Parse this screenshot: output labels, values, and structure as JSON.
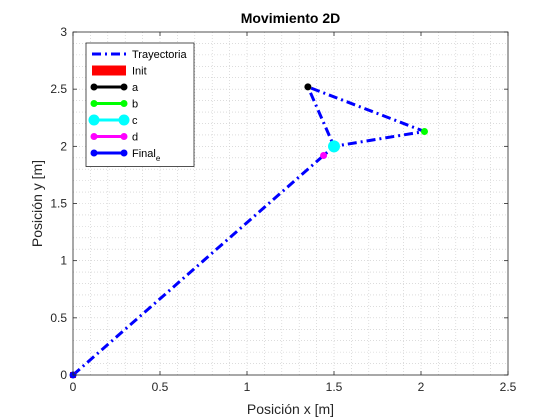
{
  "chart_data": {
    "type": "line",
    "title": "Movimiento 2D",
    "xlabel": "Posición x [m]",
    "ylabel": "Posición y [m]",
    "xlim": [
      0,
      2.5
    ],
    "ylim": [
      0,
      3
    ],
    "xticks": [
      "0",
      "0.5",
      "1",
      "1.5",
      "2",
      "2.5"
    ],
    "yticks": [
      "0",
      "0.5",
      "1",
      "1.5",
      "2",
      "2.5",
      "3"
    ],
    "grid": "minor-dotted",
    "legend_position": "top-left",
    "trajectory": {
      "name": "Trayectoria",
      "color": "#0000ff",
      "style": "dash-dot",
      "x": [
        0,
        1.44,
        1.5,
        2.02,
        1.35,
        1.5
      ],
      "y": [
        0,
        1.92,
        2.0,
        2.13,
        2.52,
        2.0
      ]
    },
    "points": [
      {
        "name": "Init",
        "color": "#ff0000",
        "x": 0,
        "y": 0,
        "marker": "square"
      },
      {
        "name": "a",
        "color": "#000000",
        "x": 1.35,
        "y": 2.52,
        "marker": "dot"
      },
      {
        "name": "b",
        "color": "#00ff00",
        "x": 2.02,
        "y": 2.13,
        "marker": "dot"
      },
      {
        "name": "c",
        "color": "#00ffff",
        "x": 1.5,
        "y": 2.0,
        "marker": "big-dot"
      },
      {
        "name": "d",
        "color": "#ff00ff",
        "x": 1.44,
        "y": 1.92,
        "marker": "dot"
      },
      {
        "name": "Final",
        "sub": "e",
        "color": "#0000ff",
        "x": 0,
        "y": 0,
        "marker": "dot"
      }
    ]
  }
}
